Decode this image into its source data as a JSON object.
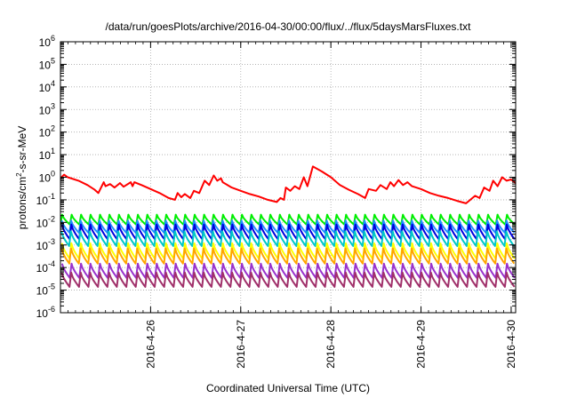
{
  "chart_data": {
    "type": "line",
    "title": "/data/run/goesPlots/archive/2016-04-30/00:00/flux/../flux/5daysMarsFluxes.txt",
    "xlabel": "Coordinated Universal Time (UTC)",
    "ylabel_main": "protons/cm",
    "ylabel_sup": "2",
    "ylabel_rest": "-s-sr-MeV",
    "y_scale": "log",
    "ylim": [
      1e-06,
      1000000.0
    ],
    "y_ticks": [
      {
        "base": "10",
        "exp": "-6"
      },
      {
        "base": "10",
        "exp": "-5"
      },
      {
        "base": "10",
        "exp": "-4"
      },
      {
        "base": "10",
        "exp": "-3"
      },
      {
        "base": "10",
        "exp": "-2"
      },
      {
        "base": "10",
        "exp": "-1"
      },
      {
        "base": "10",
        "exp": "0"
      },
      {
        "base": "10",
        "exp": "1"
      },
      {
        "base": "10",
        "exp": "2"
      },
      {
        "base": "10",
        "exp": "3"
      },
      {
        "base": "10",
        "exp": "4"
      },
      {
        "base": "10",
        "exp": "5"
      },
      {
        "base": "10",
        "exp": "6"
      }
    ],
    "x_unit": "days",
    "xlim_days": [
      25.0,
      30.05
    ],
    "x_ticks": [
      {
        "label": "2016-4-26",
        "day": 26
      },
      {
        "label": "2016-4-27",
        "day": 27
      },
      {
        "label": "2016-4-28",
        "day": 28
      },
      {
        "label": "2016-4-29",
        "day": 29
      },
      {
        "label": "2016-4-30",
        "day": 30
      }
    ],
    "grid": true,
    "legend": "none",
    "series": [
      {
        "color": "#ff0000",
        "x": [
          25.0,
          25.04,
          25.08,
          25.2,
          25.3,
          25.38,
          25.42,
          25.48,
          25.5,
          25.55,
          25.6,
          25.66,
          25.7,
          25.78,
          25.8,
          25.82,
          25.9,
          26.0,
          26.1,
          26.2,
          26.27,
          26.3,
          26.34,
          26.38,
          26.44,
          26.48,
          26.54,
          26.6,
          26.65,
          26.7,
          26.74,
          26.78,
          26.8,
          26.9,
          27.0,
          27.1,
          27.2,
          27.3,
          27.4,
          27.44,
          27.48,
          27.5,
          27.55,
          27.6,
          27.65,
          27.7,
          27.74,
          27.8,
          27.9,
          28.0,
          28.1,
          28.2,
          28.3,
          28.38,
          28.42,
          28.5,
          28.55,
          28.62,
          28.66,
          28.7,
          28.75,
          28.8,
          28.85,
          28.9,
          29.0,
          29.1,
          29.2,
          29.3,
          29.4,
          29.5,
          29.6,
          29.65,
          29.7,
          29.76,
          29.8,
          29.85,
          29.9,
          29.95,
          30.0,
          30.05
        ],
        "y": [
          0.9,
          1.3,
          1.0,
          0.7,
          0.45,
          0.28,
          0.2,
          0.6,
          0.4,
          0.5,
          0.35,
          0.55,
          0.38,
          0.6,
          0.4,
          0.6,
          0.45,
          0.3,
          0.2,
          0.12,
          0.1,
          0.2,
          0.13,
          0.18,
          0.12,
          0.25,
          0.2,
          0.7,
          0.45,
          1.2,
          0.7,
          0.9,
          0.6,
          0.35,
          0.25,
          0.18,
          0.14,
          0.1,
          0.08,
          0.12,
          0.1,
          0.35,
          0.25,
          0.4,
          0.3,
          1.0,
          0.4,
          3.0,
          1.8,
          1.0,
          0.45,
          0.28,
          0.18,
          0.12,
          0.3,
          0.25,
          0.45,
          0.3,
          0.6,
          0.4,
          0.75,
          0.45,
          0.6,
          0.4,
          0.3,
          0.2,
          0.15,
          0.12,
          0.09,
          0.07,
          0.15,
          0.12,
          0.35,
          0.25,
          0.7,
          0.4,
          1.0,
          0.7,
          0.8,
          0.55
        ]
      }
    ],
    "oscillating_series": [
      {
        "color": "#00ee00",
        "low": 0.008,
        "high": 0.022,
        "phase": 0.0
      },
      {
        "color": "#1e90ff",
        "low": 0.0035,
        "high": 0.012,
        "phase": 0.05
      },
      {
        "color": "#0000dd",
        "low": 0.0018,
        "high": 0.008,
        "phase": 0.02
      },
      {
        "color": "#00c8c8",
        "low": 0.0009,
        "high": 0.004,
        "phase": 0.08
      },
      {
        "color": "#ffff00",
        "low": 0.00025,
        "high": 0.0012,
        "phase": 0.03
      },
      {
        "color": "#ffa500",
        "low": 0.00015,
        "high": 0.0007,
        "phase": 0.06
      },
      {
        "color": "#9932cc",
        "low": 3.5e-05,
        "high": 0.00015,
        "phase": 0.01
      },
      {
        "color": "#a0306a",
        "low": 1.4e-05,
        "high": 6e-05,
        "phase": 0.04
      }
    ],
    "oscillation_period_days": 0.105
  }
}
